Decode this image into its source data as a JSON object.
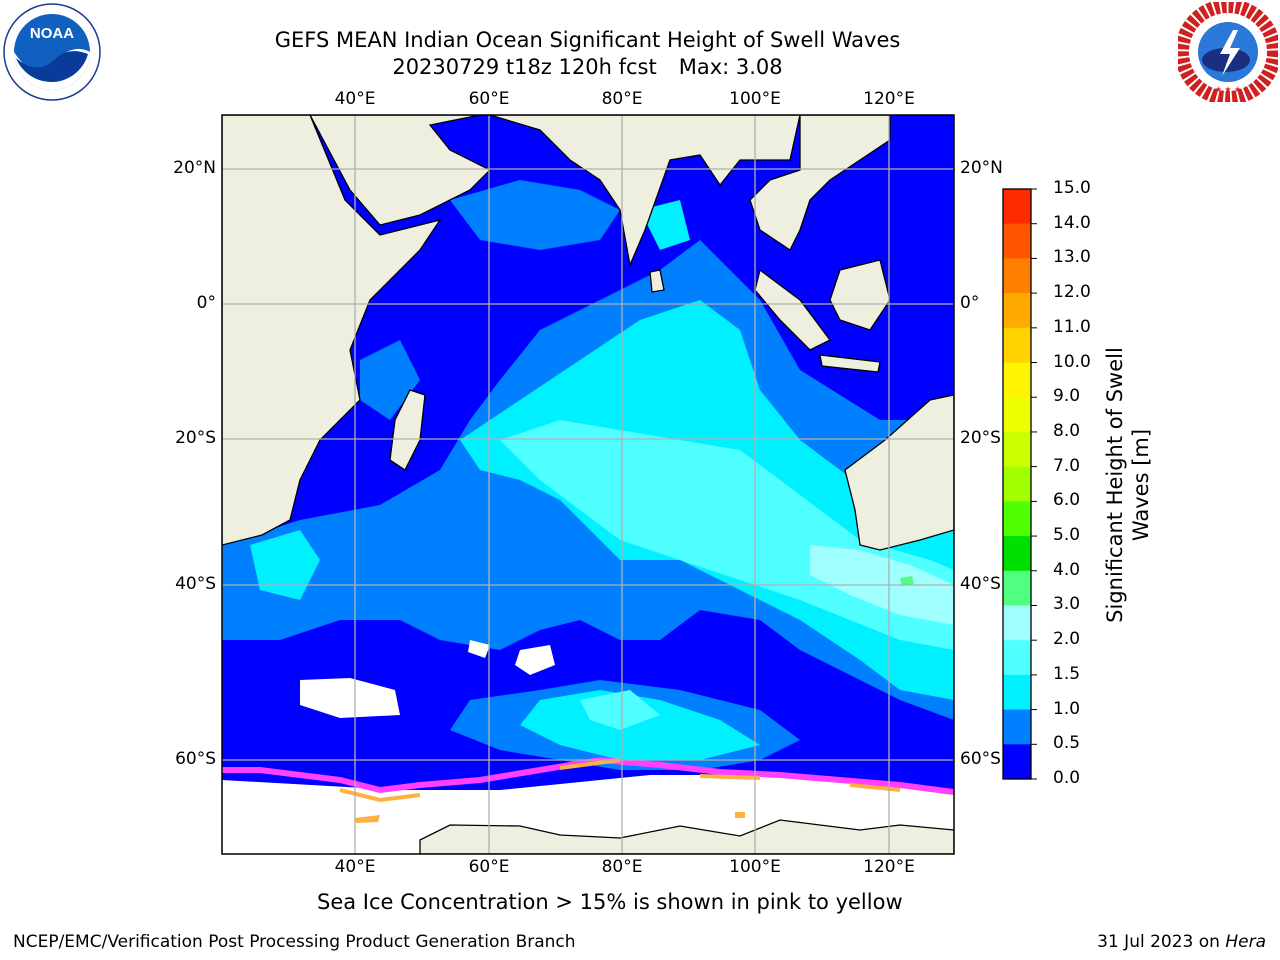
{
  "header": {
    "title_line1": "GEFS MEAN Indian Ocean Significant Height of Swell Waves",
    "title_line2_date": "20230729 t18z 120h fcst",
    "title_line2_max": "Max: 3.08"
  },
  "logos": {
    "left": {
      "name": "noaa-logo",
      "text": "NOAA"
    },
    "right": {
      "name": "nws-logo",
      "text": "NATIONAL WEATHER SERVICE"
    }
  },
  "map": {
    "lon_labels_top": [
      "40°E",
      "60°E",
      "80°E",
      "100°E",
      "120°E"
    ],
    "lon_labels_bottom": [
      "40°E",
      "60°E",
      "80°E",
      "100°E",
      "120°E"
    ],
    "lat_labels_left": [
      "20°N",
      "0°",
      "20°S",
      "40°S",
      "60°S"
    ],
    "lat_labels_right": [
      "20°N",
      "0°",
      "20°S",
      "40°S",
      "60°S"
    ],
    "land_color": "#efefe0",
    "grid_color": "#b0b0b0"
  },
  "colorbar": {
    "title": "Significant Height of Swell Waves [m]",
    "ticks": [
      "15.0",
      "14.0",
      "13.0",
      "12.0",
      "11.0",
      "10.0",
      "9.0",
      "8.0",
      "7.0",
      "6.0",
      "5.0",
      "4.0",
      "3.0",
      "2.0",
      "1.5",
      "1.0",
      "0.5",
      "0.0"
    ],
    "colors_top_to_bottom": [
      "#ff0000",
      "#ff2a00",
      "#ff5500",
      "#ff8000",
      "#ffaa00",
      "#ffd200",
      "#fff500",
      "#f0ff00",
      "#ccff00",
      "#a0ff00",
      "#50ff00",
      "#00e000",
      "#50ff80",
      "#a0ffff",
      "#50ffff",
      "#00f0ff",
      "#0080ff",
      "#0000ff"
    ]
  },
  "caption": "Sea Ice Concentration > 15% is shown in pink to yellow",
  "footer": {
    "left": "NCEP/EMC/Verification Post Processing Product Generation Branch",
    "right_prefix": "31 Jul 2023 on",
    "right_host": "Hera"
  }
}
